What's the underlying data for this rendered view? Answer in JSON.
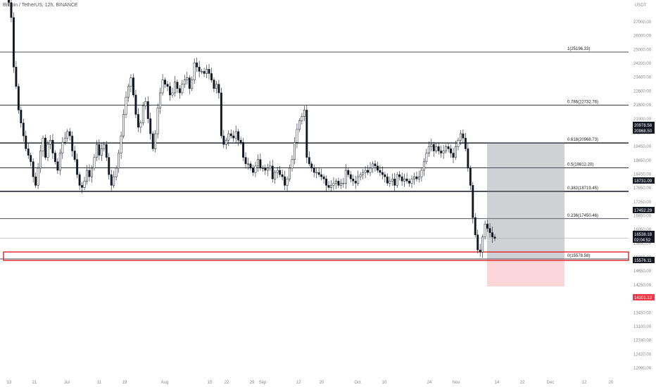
{
  "header": {
    "symbol": "Bitcoin / TetherUS, 12h, BINANCE"
  },
  "price_unit": "USDT",
  "chart_data": {
    "type": "candlestick",
    "y_ticks": [
      "27000.00",
      "26000.00",
      "25000.00",
      "24200.00",
      "23400.00",
      "22600.00",
      "21800.00",
      "21000.00",
      "20200.00",
      "19450.00",
      "18650.00",
      "18450.00",
      "17650.00",
      "17250.00",
      "16850.00",
      "16050.00",
      "15650.00",
      "15050.00",
      "14650.00",
      "14250.00",
      "13850.00",
      "13450.00",
      "13100.00",
      "12740.00",
      "12420.00",
      "12090.00"
    ],
    "x_ticks": [
      "13",
      "21",
      "Jul",
      "11",
      "19",
      "Aug",
      "15",
      "22",
      "29",
      "Sep",
      "12",
      "20",
      "Oct",
      "10",
      "24",
      "Nov",
      "14",
      "22",
      "Dec",
      "12",
      "20"
    ],
    "fib_levels": [
      {
        "label": "1(25196.33)",
        "value": 25196.33
      },
      {
        "label": "0.786(22732.76)",
        "value": 22732.76
      },
      {
        "label": "0.618(20968.73)",
        "value": 20968.73
      },
      {
        "label": "0.5(19812.20)",
        "value": 19812.2
      },
      {
        "label": "0.382(18719.45)",
        "value": 18719.45
      },
      {
        "label": "0.236(17450.46)",
        "value": 17450.46
      },
      {
        "label": "0(15578.58)",
        "value": 15578.58
      }
    ],
    "price_badges": [
      {
        "text": "20978.58",
        "color": "#131722"
      },
      {
        "text": "20968.50",
        "color": "#131722"
      },
      {
        "text": "18731.09",
        "color": "#131722"
      },
      {
        "text": "17452.29",
        "color": "#131722"
      },
      {
        "text": "16538.18",
        "color": "#131722"
      },
      {
        "text": "02:04:52",
        "color": "#131722"
      },
      {
        "text": "15576.11",
        "color": "#131722"
      },
      {
        "text": "14301.13",
        "color": "#f23645"
      }
    ],
    "current_price": 16538.18,
    "short_position": {
      "entry": 15576.11,
      "stop": 20978.58,
      "target": 14301.13
    },
    "closes": [
      27800,
      27500,
      26800,
      24500,
      23600,
      22500,
      21900,
      21300,
      20700,
      20400,
      20100,
      19400,
      19000,
      19800,
      20600,
      21200,
      20300,
      20900,
      21100,
      20500,
      20100,
      19700,
      20500,
      21000,
      21200,
      21500,
      21300,
      20600,
      20200,
      19500,
      19000,
      18900,
      19200,
      19700,
      19400,
      19800,
      20300,
      20900,
      20400,
      20700,
      20900,
      20300,
      19500,
      19000,
      19400,
      19800,
      20500,
      21300,
      22300,
      23100,
      23600,
      24000,
      23200,
      22300,
      21700,
      21900,
      22700,
      22900,
      22100,
      21400,
      20700,
      21400,
      22600,
      23300,
      23900,
      23700,
      23600,
      23200,
      23300,
      23800,
      23500,
      23300,
      23700,
      23900,
      24000,
      23500,
      23900,
      24700,
      24500,
      24300,
      24300,
      24200,
      24400,
      24200,
      23900,
      23500,
      23700,
      23300,
      21300,
      20900,
      21100,
      21400,
      21300,
      21200,
      21500,
      21100,
      21000,
      20300,
      20000,
      20000,
      19800,
      19600,
      19900,
      20200,
      19800,
      19800,
      19700,
      19800,
      19900,
      19300,
      19600,
      19700,
      19500,
      19400,
      19000,
      19300,
      19800,
      20200,
      21000,
      21600,
      22000,
      22200,
      22500,
      20300,
      20000,
      19800,
      19600,
      19600,
      19500,
      19400,
      19300,
      19000,
      18900,
      19000,
      19100,
      19200,
      19000,
      19100,
      19100,
      19700,
      19500,
      19300,
      19200,
      19100,
      19400,
      19500,
      19600,
      19700,
      19600,
      19800,
      20000,
      19900,
      19700,
      19600,
      19500,
      19400,
      19100,
      19200,
      19300,
      19000,
      19500,
      19400,
      19200,
      19300,
      19200,
      19100,
      19300,
      19400,
      19300,
      19400,
      19700,
      20100,
      20500,
      20800,
      20900,
      20600,
      20800,
      20600,
      20500,
      20600,
      20800,
      20700,
      20500,
      20300,
      20800,
      21100,
      21400,
      21200,
      20700,
      19800,
      19000,
      17500,
      16700,
      16000,
      15900,
      16600,
      17200,
      17000,
      16800,
      16600,
      16538
    ]
  }
}
